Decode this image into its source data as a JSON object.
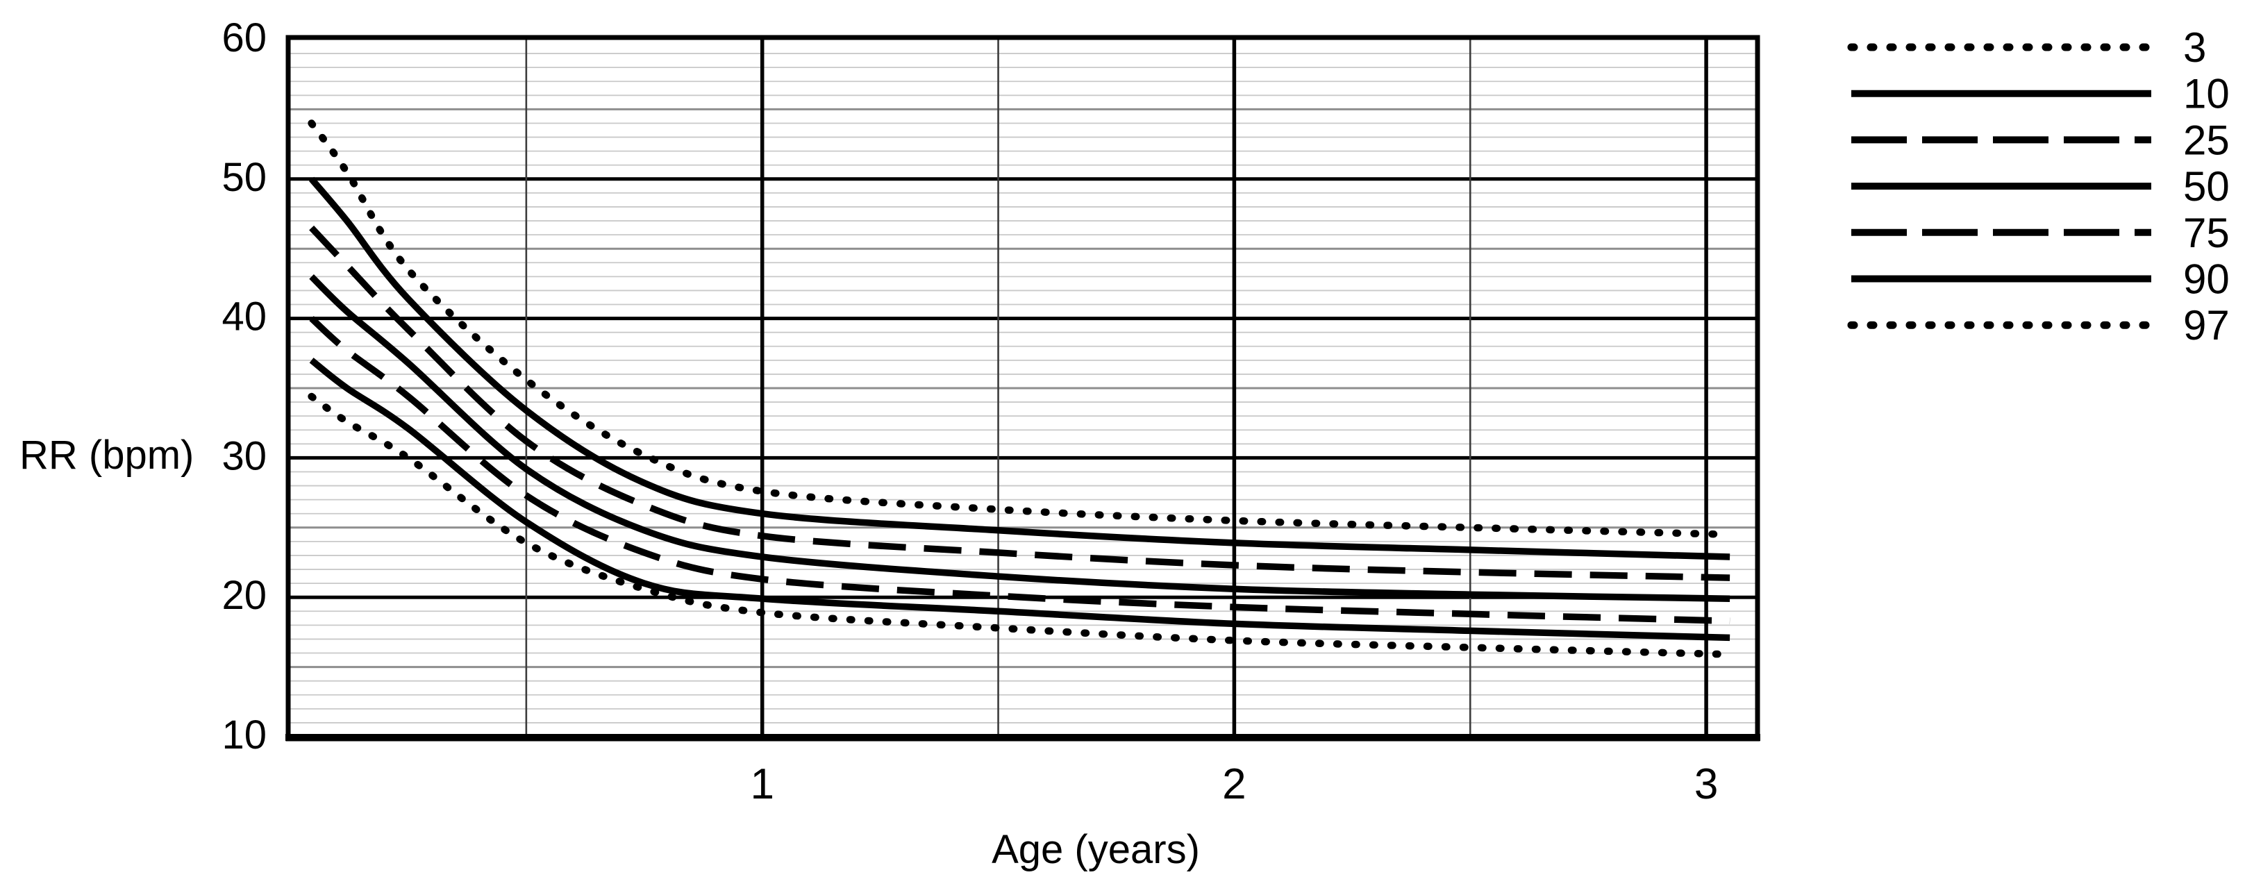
{
  "figure": {
    "background": "#ffffff",
    "ink_color": "#000000",
    "grid_minor_color": "#c9c9c9",
    "grid_medium_color": "#8e8e8e",
    "grid_major_color": "#000000"
  },
  "chart_data": {
    "type": "line",
    "title": "",
    "xlabel": "Age (years)",
    "ylabel": "RR (bpm)",
    "xlim": [
      0,
      3.1
    ],
    "ylim": [
      10,
      60
    ],
    "x_ticks": [
      1,
      2,
      3
    ],
    "y_ticks": [
      60,
      50,
      40,
      30,
      20,
      10
    ],
    "grid": {
      "y_minor_step": 1,
      "y_medium_step": 5,
      "y_major_step": 10,
      "x_minor_step": 0.5,
      "x_major_step": 1,
      "grid_on": true
    },
    "legend_position": "top-right",
    "series_meaning": "RR percentile curves for age, percentile labels shown in legend",
    "x": [
      0.045,
      0.12,
      0.25,
      0.5,
      0.75,
      1,
      1.5,
      2,
      2.5,
      3.05
    ],
    "series": [
      {
        "name": "3",
        "style": "dotted",
        "values": [
          34.4,
          32.6,
          30.0,
          23.9,
          20.6,
          18.9,
          17.8,
          16.9,
          16.4,
          15.9
        ]
      },
      {
        "name": "10",
        "style": "solid",
        "values": [
          37.0,
          35.0,
          32.1,
          25.4,
          21.0,
          19.9,
          19.0,
          18.1,
          17.6,
          17.1
        ]
      },
      {
        "name": "25",
        "style": "dashed",
        "values": [
          40.0,
          37.7,
          34.4,
          27.3,
          23.2,
          21.3,
          20.1,
          19.3,
          18.8,
          18.3
        ]
      },
      {
        "name": "50",
        "style": "solid",
        "values": [
          43.0,
          40.5,
          36.8,
          29.2,
          24.8,
          22.9,
          21.5,
          20.6,
          20.2,
          19.9
        ]
      },
      {
        "name": "75",
        "style": "dashed",
        "values": [
          46.5,
          43.8,
          39.2,
          31.2,
          26.6,
          24.4,
          23.2,
          22.3,
          21.8,
          21.4
        ]
      },
      {
        "name": "90",
        "style": "solid",
        "values": [
          50.0,
          47.0,
          41.4,
          33.4,
          28.2,
          26.0,
          24.8,
          23.9,
          23.4,
          22.9
        ]
      },
      {
        "name": "97",
        "style": "dotted",
        "values": [
          54.0,
          50.5,
          43.5,
          35.6,
          30.2,
          27.6,
          26.3,
          25.5,
          25.0,
          24.5
        ]
      }
    ],
    "legend_labels": [
      "3",
      "10",
      "25",
      "50",
      "75",
      "90",
      "97"
    ]
  }
}
